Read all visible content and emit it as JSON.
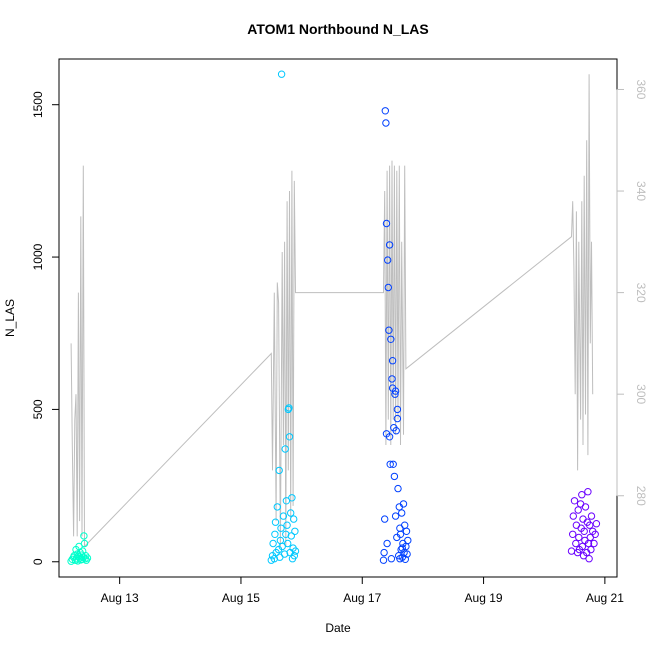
{
  "chart_data": {
    "type": "scatter",
    "title": "ATOM1 Northbound N_LAS",
    "xlabel": "Date",
    "ylabel": "N_LAS",
    "x_ticks": [
      {
        "day": 13,
        "label": "Aug 13"
      },
      {
        "day": 15,
        "label": "Aug 15"
      },
      {
        "day": 17,
        "label": "Aug 17"
      },
      {
        "day": 19,
        "label": "Aug 19"
      },
      {
        "day": 21,
        "label": "Aug 21"
      }
    ],
    "xlim": [
      12.0,
      21.2
    ],
    "ylim": [
      -50,
      1650
    ],
    "y_ticks": [
      0,
      500,
      1000,
      1500
    ],
    "y2lim": [
      264,
      366
    ],
    "y2_ticks": [
      280,
      300,
      320,
      340,
      360
    ],
    "grid": false,
    "point_style": "open-circle",
    "series": [
      {
        "color": "#00ffcc",
        "points": [
          [
            12.2,
            2
          ],
          [
            12.22,
            8
          ],
          [
            12.24,
            15
          ],
          [
            12.25,
            20
          ],
          [
            12.27,
            5
          ],
          [
            12.28,
            40
          ],
          [
            12.29,
            10
          ],
          [
            12.3,
            25
          ],
          [
            12.31,
            3
          ],
          [
            12.32,
            18
          ],
          [
            12.33,
            50
          ],
          [
            12.34,
            12
          ],
          [
            12.35,
            30
          ],
          [
            12.36,
            6
          ],
          [
            12.37,
            22
          ],
          [
            12.38,
            8
          ],
          [
            12.39,
            35
          ],
          [
            12.4,
            15
          ],
          [
            12.41,
            85
          ],
          [
            12.42,
            60
          ],
          [
            12.43,
            10
          ],
          [
            12.44,
            20
          ],
          [
            12.45,
            5
          ],
          [
            12.47,
            12
          ]
        ]
      },
      {
        "color": "#00c8ff",
        "points": [
          [
            15.5,
            5
          ],
          [
            15.52,
            20
          ],
          [
            15.53,
            60
          ],
          [
            15.55,
            10
          ],
          [
            15.56,
            90
          ],
          [
            15.57,
            130
          ],
          [
            15.58,
            30
          ],
          [
            15.6,
            180
          ],
          [
            15.62,
            40
          ],
          [
            15.63,
            300
          ],
          [
            15.64,
            15
          ],
          [
            15.65,
            70
          ],
          [
            15.66,
            110
          ],
          [
            15.67,
            1600
          ],
          [
            15.68,
            50
          ],
          [
            15.7,
            150
          ],
          [
            15.72,
            25
          ],
          [
            15.73,
            370
          ],
          [
            15.74,
            90
          ],
          [
            15.75,
            200
          ],
          [
            15.76,
            120
          ],
          [
            15.77,
            60
          ],
          [
            15.78,
            500
          ],
          [
            15.79,
            505
          ],
          [
            15.8,
            410
          ],
          [
            15.81,
            30
          ],
          [
            15.82,
            160
          ],
          [
            15.83,
            85
          ],
          [
            15.84,
            210
          ],
          [
            15.85,
            10
          ],
          [
            15.86,
            45
          ],
          [
            15.87,
            140
          ],
          [
            15.88,
            20
          ],
          [
            15.89,
            100
          ],
          [
            15.9,
            35
          ]
        ]
      },
      {
        "color": "#0040ff",
        "points": [
          [
            17.35,
            5
          ],
          [
            17.36,
            30
          ],
          [
            17.37,
            140
          ],
          [
            17.38,
            1480
          ],
          [
            17.39,
            1440
          ],
          [
            17.4,
            1110
          ],
          [
            17.41,
            60
          ],
          [
            17.42,
            990
          ],
          [
            17.43,
            900
          ],
          [
            17.44,
            760
          ],
          [
            17.45,
            1040
          ],
          [
            17.46,
            320
          ],
          [
            17.47,
            730
          ],
          [
            17.48,
            10
          ],
          [
            17.49,
            600
          ],
          [
            17.5,
            570
          ],
          [
            17.51,
            320
          ],
          [
            17.52,
            440
          ],
          [
            17.53,
            280
          ],
          [
            17.54,
            550
          ],
          [
            17.55,
            150
          ],
          [
            17.56,
            430
          ],
          [
            17.57,
            80
          ],
          [
            17.58,
            500
          ],
          [
            17.59,
            240
          ],
          [
            17.6,
            20
          ],
          [
            17.61,
            180
          ],
          [
            17.62,
            110
          ],
          [
            17.63,
            90
          ],
          [
            17.64,
            40
          ],
          [
            17.65,
            160
          ],
          [
            17.66,
            15
          ],
          [
            17.67,
            60
          ],
          [
            17.68,
            190
          ],
          [
            17.69,
            30
          ],
          [
            17.7,
            120
          ],
          [
            17.71,
            8
          ],
          [
            17.72,
            50
          ],
          [
            17.73,
            100
          ],
          [
            17.74,
            25
          ],
          [
            17.75,
            70
          ],
          [
            17.4,
            420
          ],
          [
            17.45,
            410
          ],
          [
            17.5,
            660
          ],
          [
            17.55,
            560
          ],
          [
            17.58,
            470
          ],
          [
            17.62,
            10
          ],
          [
            17.66,
            45
          ]
        ]
      },
      {
        "color": "#6a00ff",
        "points": [
          [
            20.45,
            35
          ],
          [
            20.47,
            90
          ],
          [
            20.48,
            150
          ],
          [
            20.5,
            200
          ],
          [
            20.52,
            60
          ],
          [
            20.53,
            120
          ],
          [
            20.55,
            30
          ],
          [
            20.56,
            170
          ],
          [
            20.57,
            80
          ],
          [
            20.58,
            40
          ],
          [
            20.6,
            190
          ],
          [
            20.61,
            110
          ],
          [
            20.62,
            220
          ],
          [
            20.63,
            50
          ],
          [
            20.64,
            140
          ],
          [
            20.65,
            20
          ],
          [
            20.66,
            100
          ],
          [
            20.67,
            70
          ],
          [
            20.68,
            180
          ],
          [
            20.7,
            30
          ],
          [
            20.71,
            130
          ],
          [
            20.72,
            230
          ],
          [
            20.73,
            60
          ],
          [
            20.74,
            10
          ],
          [
            20.75,
            120
          ],
          [
            20.76,
            80
          ],
          [
            20.77,
            40
          ],
          [
            20.78,
            150
          ],
          [
            20.8,
            100
          ],
          [
            20.82,
            60
          ],
          [
            20.84,
            90
          ],
          [
            20.86,
            125
          ]
        ]
      }
    ],
    "secondary_line": {
      "color": "#bebebe",
      "points": [
        [
          12.2,
          310
        ],
        [
          12.22,
          290
        ],
        [
          12.24,
          272
        ],
        [
          12.26,
          295
        ],
        [
          12.28,
          300
        ],
        [
          12.3,
          272
        ],
        [
          12.32,
          320
        ],
        [
          12.34,
          275
        ],
        [
          12.36,
          335
        ],
        [
          12.38,
          272
        ],
        [
          12.4,
          345
        ],
        [
          12.42,
          270
        ],
        [
          15.5,
          308
        ],
        [
          15.52,
          285
        ],
        [
          15.55,
          320
        ],
        [
          15.58,
          275
        ],
        [
          15.6,
          322
        ],
        [
          15.62,
          318
        ],
        [
          15.65,
          270
        ],
        [
          15.68,
          328
        ],
        [
          15.7,
          290
        ],
        [
          15.72,
          330
        ],
        [
          15.74,
          270
        ],
        [
          15.76,
          338
        ],
        [
          15.78,
          285
        ],
        [
          15.8,
          340
        ],
        [
          15.82,
          275
        ],
        [
          15.84,
          344
        ],
        [
          15.86,
          278
        ],
        [
          15.88,
          342
        ],
        [
          15.9,
          320
        ],
        [
          17.35,
          320
        ],
        [
          17.37,
          340
        ],
        [
          17.39,
          290
        ],
        [
          17.41,
          344
        ],
        [
          17.43,
          295
        ],
        [
          17.45,
          345
        ],
        [
          17.47,
          290
        ],
        [
          17.49,
          346
        ],
        [
          17.51,
          295
        ],
        [
          17.53,
          345
        ],
        [
          17.55,
          292
        ],
        [
          17.57,
          344
        ],
        [
          17.59,
          295
        ],
        [
          17.61,
          345
        ],
        [
          17.63,
          290
        ],
        [
          17.65,
          330
        ],
        [
          17.68,
          292
        ],
        [
          17.7,
          345
        ],
        [
          17.72,
          305
        ],
        [
          20.45,
          331
        ],
        [
          20.47,
          338
        ],
        [
          20.49,
          325
        ],
        [
          20.51,
          300
        ],
        [
          20.53,
          336
        ],
        [
          20.55,
          285
        ],
        [
          20.57,
          330
        ],
        [
          20.6,
          295
        ],
        [
          20.62,
          338
        ],
        [
          20.64,
          290
        ],
        [
          20.66,
          343
        ],
        [
          20.68,
          296
        ],
        [
          20.7,
          350
        ],
        [
          20.72,
          288
        ],
        [
          20.74,
          363
        ],
        [
          20.76,
          310
        ],
        [
          20.78,
          330
        ],
        [
          20.8,
          300
        ]
      ]
    }
  }
}
